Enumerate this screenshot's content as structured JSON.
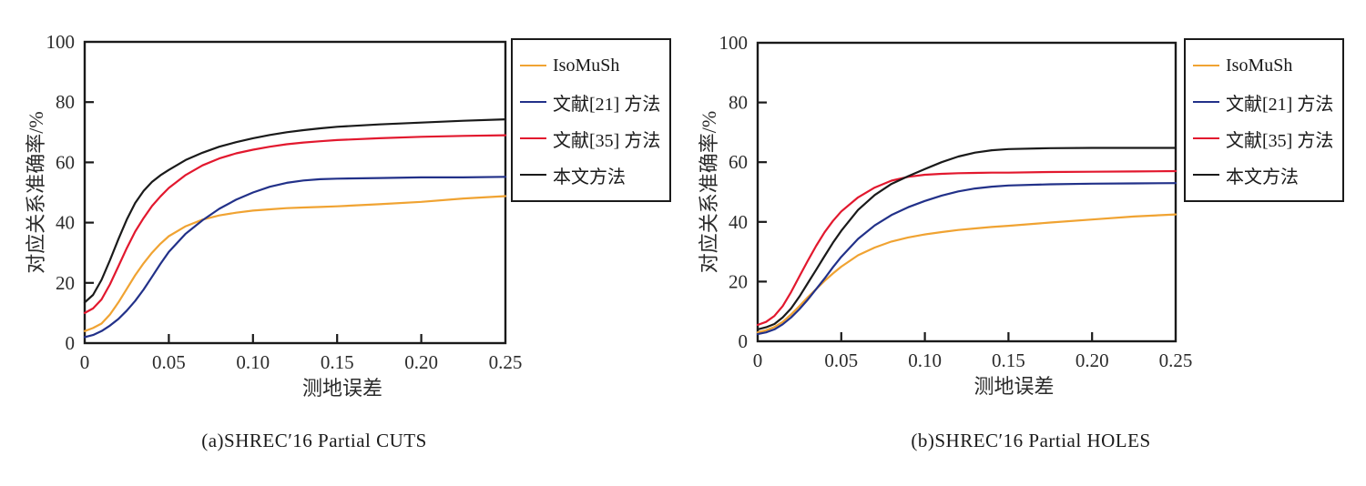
{
  "figure": {
    "background": "#ffffff",
    "xlabel_text": "测地误差",
    "ylabel_text": "对应关系准确率/%"
  },
  "chart_data": [
    {
      "type": "line",
      "id": "a",
      "caption": "(a)SHREC′16 Partial CUTS",
      "xlabel": "测地误差",
      "ylabel": "对应关系准确率/%",
      "xlim": [
        0,
        0.25
      ],
      "ylim": [
        0,
        100
      ],
      "xticks": [
        "0",
        "0.05",
        "0.10",
        "0.15",
        "0.20",
        "0.25"
      ],
      "yticks": [
        "0",
        "20",
        "40",
        "60",
        "80",
        "100"
      ],
      "grid": false,
      "legend_position": "outside-right",
      "series": [
        {
          "key": "isomush",
          "label": "IsoMuSh",
          "color": "#F0A332",
          "x": [
            0,
            0.005,
            0.01,
            0.015,
            0.02,
            0.025,
            0.03,
            0.035,
            0.04,
            0.045,
            0.05,
            0.06,
            0.07,
            0.08,
            0.09,
            0.1,
            0.11,
            0.12,
            0.13,
            0.14,
            0.15,
            0.175,
            0.2,
            0.225,
            0.25
          ],
          "y": [
            4,
            5,
            6.5,
            9.5,
            13.5,
            18,
            22.5,
            26.5,
            30,
            33,
            35.5,
            38.8,
            41,
            42.4,
            43.3,
            44,
            44.4,
            44.8,
            45,
            45.2,
            45.4,
            46.1,
            46.9,
            48,
            48.8
          ]
        },
        {
          "key": "ref21",
          "label": "文献[21] 方法",
          "color": "#223189",
          "x": [
            0,
            0.005,
            0.01,
            0.015,
            0.02,
            0.025,
            0.03,
            0.035,
            0.04,
            0.045,
            0.05,
            0.06,
            0.07,
            0.08,
            0.09,
            0.1,
            0.11,
            0.12,
            0.13,
            0.14,
            0.15,
            0.175,
            0.2,
            0.225,
            0.25
          ],
          "y": [
            2,
            2.7,
            4,
            5.8,
            8,
            10.8,
            14,
            17.8,
            22,
            26.3,
            30.3,
            36.3,
            40.8,
            44.6,
            47.6,
            50,
            51.9,
            53.2,
            54,
            54.4,
            54.6,
            54.8,
            55,
            55,
            55.2
          ]
        },
        {
          "key": "ref35",
          "label": "文献[35] 方法",
          "color": "#E2182E",
          "x": [
            0,
            0.005,
            0.01,
            0.015,
            0.02,
            0.025,
            0.03,
            0.035,
            0.04,
            0.045,
            0.05,
            0.06,
            0.07,
            0.08,
            0.09,
            0.1,
            0.11,
            0.12,
            0.13,
            0.14,
            0.15,
            0.175,
            0.2,
            0.225,
            0.25
          ],
          "y": [
            10,
            11.5,
            14.5,
            19.5,
            25.5,
            31.5,
            37,
            41.5,
            45.5,
            48.7,
            51.5,
            55.8,
            59,
            61.3,
            63,
            64.2,
            65.2,
            66,
            66.6,
            67,
            67.4,
            68,
            68.5,
            68.8,
            69
          ]
        },
        {
          "key": "ours",
          "label": "本文方法",
          "color": "#1A1A1A",
          "x": [
            0,
            0.005,
            0.01,
            0.015,
            0.02,
            0.025,
            0.03,
            0.035,
            0.04,
            0.045,
            0.05,
            0.06,
            0.07,
            0.08,
            0.09,
            0.1,
            0.11,
            0.12,
            0.13,
            0.14,
            0.15,
            0.175,
            0.2,
            0.225,
            0.25
          ],
          "y": [
            13.5,
            16,
            21,
            27.5,
            34.5,
            41,
            46.5,
            50.5,
            53.5,
            55.7,
            57.5,
            60.8,
            63.2,
            65.2,
            66.7,
            68,
            69.1,
            70,
            70.7,
            71.3,
            71.8,
            72.6,
            73.2,
            73.8,
            74.3
          ]
        }
      ]
    },
    {
      "type": "line",
      "id": "b",
      "caption": "(b)SHREC′16 Partial HOLES",
      "xlabel": "测地误差",
      "ylabel": "对应关系准确率/%",
      "xlim": [
        0,
        0.25
      ],
      "ylim": [
        0,
        100
      ],
      "xticks": [
        "0",
        "0.05",
        "0.10",
        "0.15",
        "0.20",
        "0.25"
      ],
      "yticks": [
        "0",
        "20",
        "40",
        "60",
        "80",
        "100"
      ],
      "grid": false,
      "legend_position": "outside-right",
      "series": [
        {
          "key": "isomush",
          "label": "IsoMuSh",
          "color": "#F0A332",
          "x": [
            0,
            0.005,
            0.01,
            0.015,
            0.02,
            0.025,
            0.03,
            0.035,
            0.04,
            0.045,
            0.05,
            0.06,
            0.07,
            0.08,
            0.09,
            0.1,
            0.11,
            0.12,
            0.13,
            0.14,
            0.15,
            0.175,
            0.2,
            0.225,
            0.25
          ],
          "y": [
            3,
            3.7,
            4.8,
            6.5,
            9,
            11.8,
            14.8,
            17.5,
            20.2,
            22.7,
            25,
            28.8,
            31.4,
            33.4,
            34.8,
            35.8,
            36.6,
            37.3,
            37.8,
            38.3,
            38.7,
            39.8,
            40.8,
            41.8,
            42.5
          ]
        },
        {
          "key": "ref21",
          "label": "文献[21] 方法",
          "color": "#223189",
          "x": [
            0,
            0.005,
            0.01,
            0.015,
            0.02,
            0.025,
            0.03,
            0.035,
            0.04,
            0.045,
            0.05,
            0.06,
            0.07,
            0.08,
            0.09,
            0.1,
            0.11,
            0.12,
            0.13,
            0.14,
            0.15,
            0.175,
            0.2,
            0.225,
            0.25
          ],
          "y": [
            2.4,
            3,
            4,
            5.7,
            8,
            10.8,
            14,
            17.5,
            21,
            24.8,
            28.3,
            34.3,
            38.8,
            42.3,
            44.9,
            47,
            48.8,
            50.2,
            51.2,
            51.8,
            52.2,
            52.6,
            52.8,
            52.9,
            53
          ]
        },
        {
          "key": "ref35",
          "label": "文献[35] 方法",
          "color": "#E2182E",
          "x": [
            0,
            0.005,
            0.01,
            0.015,
            0.02,
            0.025,
            0.03,
            0.035,
            0.04,
            0.045,
            0.05,
            0.06,
            0.07,
            0.08,
            0.09,
            0.1,
            0.11,
            0.12,
            0.13,
            0.14,
            0.15,
            0.175,
            0.2,
            0.225,
            0.25
          ],
          "y": [
            5.5,
            6.5,
            8.5,
            11.8,
            16.5,
            21.8,
            27,
            32,
            36.5,
            40.3,
            43.5,
            48.2,
            51.5,
            53.8,
            55.1,
            55.8,
            56.1,
            56.3,
            56.4,
            56.5,
            56.5,
            56.7,
            56.8,
            56.9,
            57
          ]
        },
        {
          "key": "ours",
          "label": "本文方法",
          "color": "#1A1A1A",
          "x": [
            0,
            0.005,
            0.01,
            0.015,
            0.02,
            0.025,
            0.03,
            0.035,
            0.04,
            0.045,
            0.05,
            0.06,
            0.07,
            0.08,
            0.09,
            0.1,
            0.11,
            0.12,
            0.13,
            0.14,
            0.15,
            0.175,
            0.2,
            0.225,
            0.25
          ],
          "y": [
            4,
            4.7,
            5.8,
            8,
            11,
            15,
            19.5,
            24,
            28.5,
            33,
            37,
            44,
            49,
            52.7,
            55.3,
            57.7,
            60,
            61.9,
            63.2,
            64,
            64.4,
            64.7,
            64.8,
            64.8,
            64.8
          ]
        }
      ]
    }
  ]
}
